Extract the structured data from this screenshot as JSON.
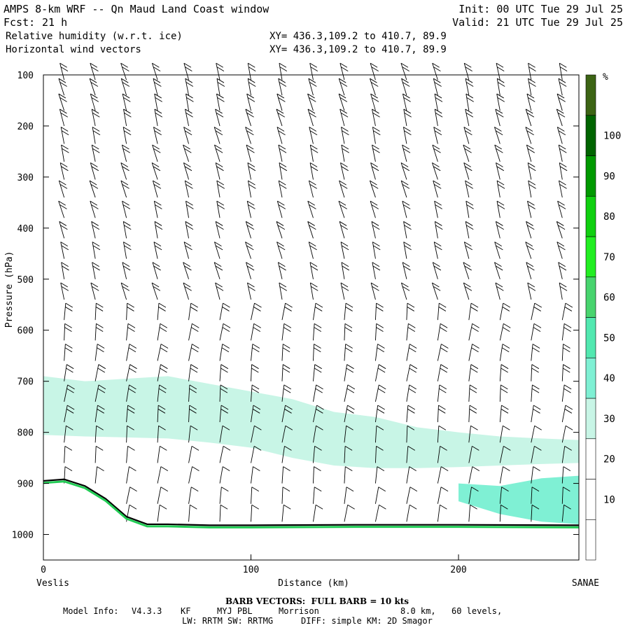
{
  "header": {
    "title": "AMPS 8-km WRF -- Qn Maud Land Coast window",
    "fcst_label": "Fcst:",
    "fcst_value": "21 h",
    "init": "Init: 00 UTC Tue 29 Jul 25",
    "valid": "Valid: 21 UTC Tue 29 Jul 25",
    "field1": "Relative humidity (w.r.t. ice)",
    "field2": "Horizontal wind vectors",
    "xy1": "XY= 436.3,109.2 to 410.7, 89.9",
    "xy2": "XY= 436.3,109.2 to 410.7, 89.9"
  },
  "chart_data": {
    "type": "heatmap",
    "title": "",
    "xlabel": "Distance (km)",
    "ylabel": "Pressure (hPa)",
    "xlim": [
      0,
      258
    ],
    "ylim": [
      1050,
      100
    ],
    "x_ticks": [
      0,
      100,
      200
    ],
    "y_ticks": [
      100,
      200,
      300,
      400,
      500,
      600,
      700,
      800,
      900,
      1000
    ],
    "x_end_labels": {
      "left": "Veslis",
      "right": "SANAE"
    },
    "colorbar": {
      "unit": "%",
      "levels": [
        10,
        20,
        30,
        40,
        50,
        60,
        70,
        80,
        90,
        100
      ],
      "colors": [
        "#ffffff",
        "#ffffff",
        "#ffffff",
        "#c8f5e6",
        "#7ff0d4",
        "#52e8b0",
        "#48d46e",
        "#22ee22",
        "#10d010",
        "#009900",
        "#006400",
        "#3c6414"
      ]
    },
    "rh_regions": [
      {
        "name": "30-40% layer",
        "level": 30,
        "upper": [
          [
            0,
            690
          ],
          [
            20,
            700
          ],
          [
            40,
            695
          ],
          [
            60,
            690
          ],
          [
            80,
            705
          ],
          [
            100,
            720
          ],
          [
            120,
            735
          ],
          [
            140,
            760
          ],
          [
            160,
            770
          ],
          [
            180,
            790
          ],
          [
            200,
            800
          ],
          [
            220,
            808
          ],
          [
            240,
            812
          ],
          [
            258,
            815
          ]
        ],
        "lower": [
          [
            0,
            805
          ],
          [
            20,
            808
          ],
          [
            40,
            810
          ],
          [
            60,
            812
          ],
          [
            80,
            820
          ],
          [
            100,
            830
          ],
          [
            120,
            850
          ],
          [
            140,
            865
          ],
          [
            160,
            870
          ],
          [
            180,
            870
          ],
          [
            200,
            868
          ],
          [
            220,
            865
          ],
          [
            240,
            862
          ],
          [
            258,
            860
          ]
        ]
      },
      {
        "name": "surface moist layer",
        "level": 40,
        "upper": [
          [
            200,
            900
          ],
          [
            220,
            905
          ],
          [
            240,
            890
          ],
          [
            258,
            885
          ]
        ],
        "lower": [
          [
            200,
            935
          ],
          [
            220,
            960
          ],
          [
            240,
            975
          ],
          [
            258,
            980
          ]
        ]
      }
    ],
    "terrain": {
      "x": [
        0,
        10,
        20,
        30,
        40,
        50,
        60,
        80,
        100,
        150,
        200,
        258
      ],
      "pressure": [
        895,
        892,
        905,
        930,
        965,
        980,
        980,
        982,
        982,
        981,
        981,
        982
      ]
    },
    "barb_columns_x": [
      10,
      25,
      40,
      55,
      70,
      85,
      100,
      115,
      130,
      145,
      160,
      175,
      190,
      205,
      220,
      235,
      250
    ],
    "barb_levels_hPa": [
      110,
      140,
      170,
      200,
      235,
      270,
      305,
      340,
      380,
      420,
      460,
      500,
      540,
      580,
      620,
      660,
      700,
      740,
      780,
      820,
      860,
      900,
      940,
      975
    ],
    "wind_note": "BARB VECTORS:  FULL BARB = 10 kts"
  },
  "footer": {
    "barb_note": "BARB VECTORS:  FULL BARB = 10 kts",
    "model_info_label": "Model Info:",
    "model_version": "V4.3.3",
    "cu": "KF",
    "pbl": "MYJ PBL",
    "mp": "Morrison",
    "res": "8.0 km,",
    "levels": "60 levels,",
    "rad": "LW: RRTM SW: RRTMG",
    "diff": "DIFF: simple KM: 2D Smagor"
  }
}
